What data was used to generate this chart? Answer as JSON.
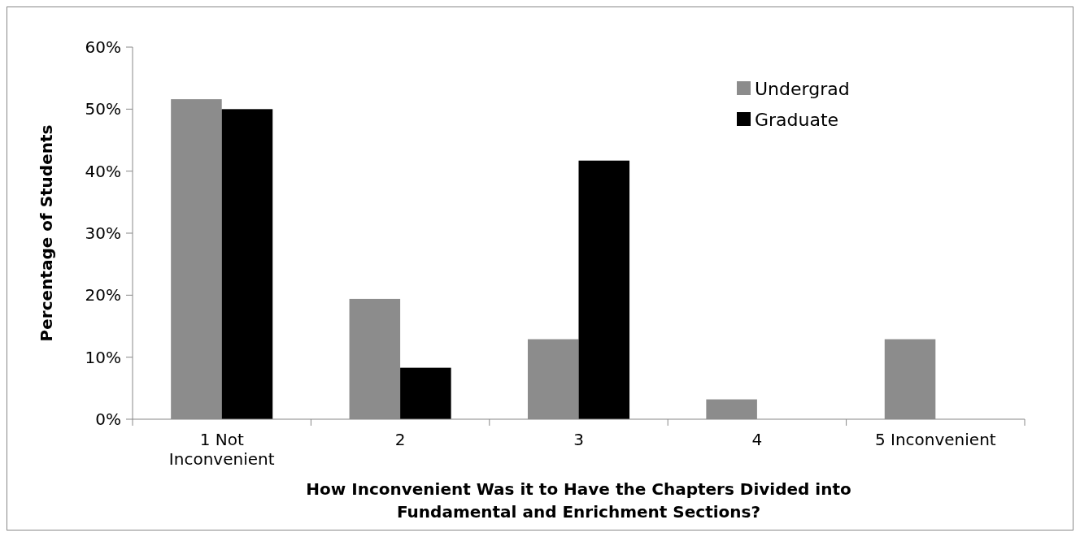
{
  "chart_data": {
    "type": "bar",
    "xlabel": "How Inconvenient Was it to Have the Chapters Divided into Fundamental and Enrichment Sections?",
    "ylabel": "Percentage of Students",
    "categories": [
      "1 Not Inconvenient",
      "2",
      "3",
      "4",
      "5 Inconvenient"
    ],
    "series": [
      {
        "name": "Undergrad",
        "color": "#8c8c8c",
        "values": [
          51.6,
          19.4,
          12.9,
          3.2,
          12.9
        ]
      },
      {
        "name": "Graduate",
        "color": "#000000",
        "values": [
          50,
          8.3,
          41.7,
          0,
          0
        ]
      }
    ],
    "ylim": [
      0,
      60
    ],
    "yticks": [
      {
        "value": 0,
        "label": "0%"
      },
      {
        "value": 10,
        "label": "10%"
      },
      {
        "value": 20,
        "label": "20%"
      },
      {
        "value": 30,
        "label": "30%"
      },
      {
        "value": 40,
        "label": "40%"
      },
      {
        "value": 50,
        "label": "50%"
      },
      {
        "value": 60,
        "label": "60%"
      }
    ],
    "grid": false,
    "legend": "top right"
  }
}
